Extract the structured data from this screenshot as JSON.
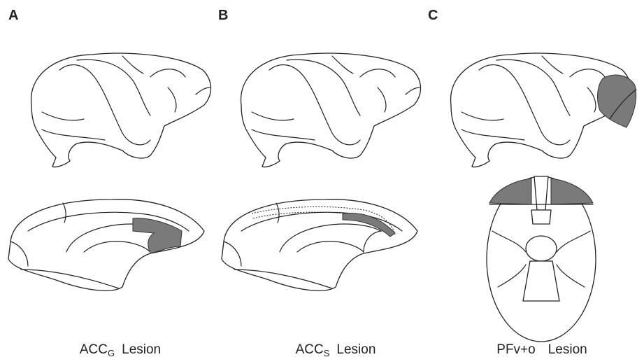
{
  "panels": [
    {
      "letter": "A",
      "caption": {
        "main": "ACC",
        "sub": "G",
        "suffix": "Lesion"
      }
    },
    {
      "letter": "B",
      "caption": {
        "main": "ACC",
        "sub": "S",
        "suffix": "Lesion"
      }
    },
    {
      "letter": "C",
      "caption": {
        "main": "PFv+o",
        "suffix": "Lesion"
      }
    }
  ]
}
